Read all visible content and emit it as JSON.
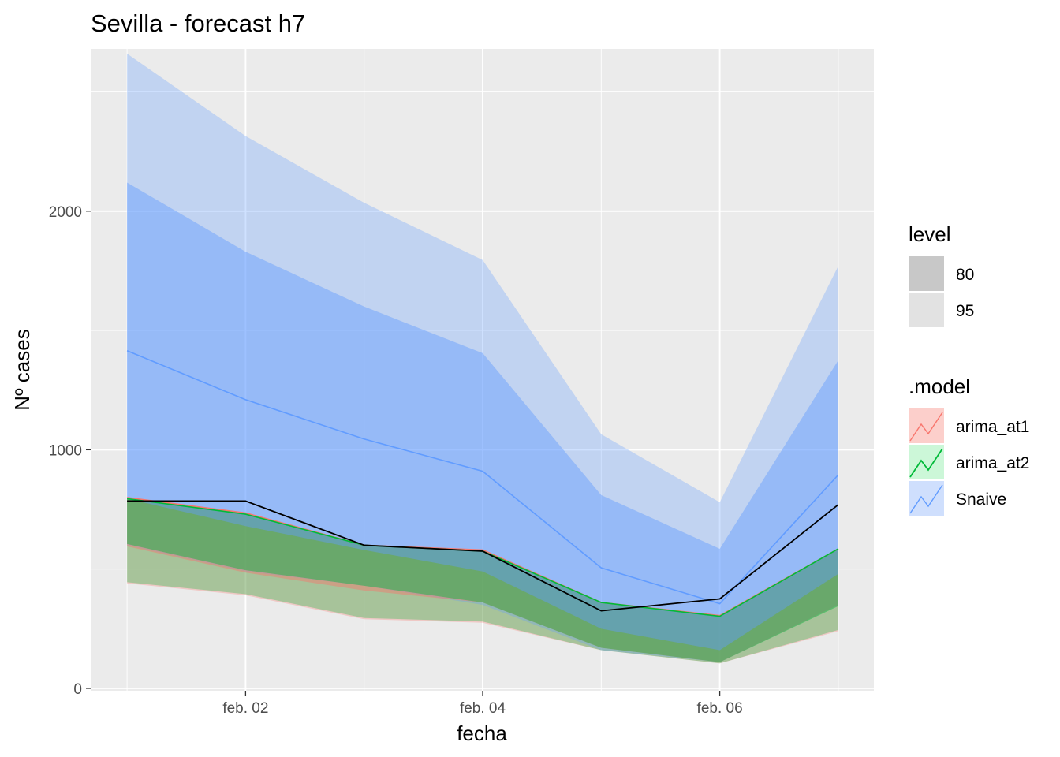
{
  "chart_data": {
    "type": "line",
    "title": "Sevilla - forecast h7",
    "xlabel": "fecha",
    "ylabel": "Nº cases",
    "x": [
      "2021-02-01",
      "2021-02-02",
      "2021-02-03",
      "2021-02-04",
      "2021-02-05",
      "2021-02-06",
      "2021-02-07"
    ],
    "x_tick_labels": [
      "feb. 02",
      "feb. 04",
      "feb. 06"
    ],
    "x_tick_values": [
      "2021-02-02",
      "2021-02-04",
      "2021-02-06"
    ],
    "y_ticks": [
      0,
      1000,
      2000
    ],
    "ylim": [
      -10,
      2680
    ],
    "grid": true,
    "legend_position": "right",
    "actual": {
      "values": [
        785,
        785,
        600,
        575,
        325,
        375,
        770
      ],
      "color": "#000000"
    },
    "series": [
      {
        "name": "arima_at1",
        "color": "#F8766D",
        "fill": "#FCCFCB",
        "mean": [
          800,
          735,
          600,
          580,
          360,
          305,
          585
        ],
        "lower80": [
          595,
          485,
          410,
          360,
          170,
          110,
          350
        ],
        "upper80": [
          800,
          735,
          600,
          580,
          360,
          305,
          585
        ],
        "lower95": [
          440,
          390,
          290,
          275,
          160,
          105,
          240
        ],
        "upper95": [
          800,
          735,
          600,
          580,
          360,
          305,
          585
        ]
      },
      {
        "name": "arima_at2",
        "color": "#00BA38",
        "fill": "#CCF7D8",
        "mean": [
          795,
          730,
          600,
          575,
          360,
          302,
          585
        ],
        "lower80": [
          605,
          495,
          430,
          360,
          170,
          110,
          345
        ],
        "upper80": [
          795,
          730,
          600,
          575,
          360,
          302,
          585
        ],
        "lower95": [
          445,
          395,
          295,
          280,
          160,
          105,
          245
        ],
        "upper95": [
          795,
          730,
          600,
          575,
          360,
          302,
          585
        ]
      },
      {
        "name": "Snaive",
        "color": "#619CFF",
        "fill": "#CFDFFD",
        "mean": [
          1415,
          1210,
          1045,
          910,
          505,
          355,
          895
        ],
        "lower80": [
          795,
          680,
          580,
          490,
          250,
          160,
          480
        ],
        "upper80": [
          2120,
          1830,
          1600,
          1405,
          810,
          585,
          1375
        ],
        "lower95": [
          600,
          490,
          430,
          350,
          160,
          110,
          350
        ],
        "upper95": [
          2660,
          2315,
          2035,
          1795,
          1065,
          780,
          1770
        ]
      }
    ],
    "legend": {
      "level": {
        "title": "level",
        "items": [
          {
            "label": "80",
            "color": "#C8C8C8"
          },
          {
            "label": "95",
            "color": "#E2E2E2"
          }
        ]
      },
      "model": {
        "title": ".model",
        "items": [
          "arima_at1",
          "arima_at2",
          "Snaive"
        ]
      }
    }
  }
}
